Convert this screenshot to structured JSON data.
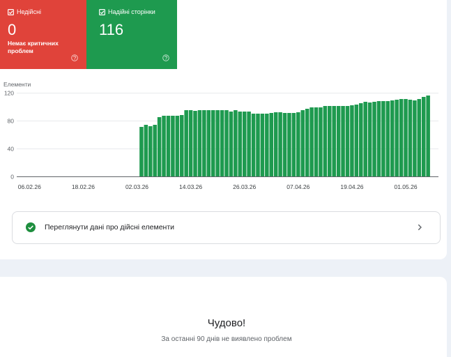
{
  "summary_cards": [
    {
      "label": "Недійсні",
      "value": "0",
      "note": "Немає критичних проблем",
      "color": "#e0433a",
      "icon": "checkbox-checked-icon",
      "help_icon": "help-circle-icon"
    },
    {
      "label": "Надійні сторінки",
      "value": "116",
      "color": "#1e9a4f",
      "icon": "checkbox-checked-icon",
      "help_icon": "help-circle-icon"
    }
  ],
  "chart_data": {
    "type": "bar",
    "title": "",
    "xlabel": "",
    "ylabel": "Елементи",
    "ylim": [
      0,
      120
    ],
    "yticks": [
      0,
      40,
      80,
      120
    ],
    "xlim": [
      "03.02.26",
      "08.05.26"
    ],
    "xticks": [
      "06.02.26",
      "18.02.26",
      "02.03.26",
      "14.03.26",
      "26.03.26",
      "07.04.26",
      "19.04.26",
      "01.05.26"
    ],
    "grid": true,
    "bar_color": "#1e9a4f",
    "x": [
      "03.03.26",
      "04.03.26",
      "05.03.26",
      "06.03.26",
      "07.03.26",
      "08.03.26",
      "09.03.26",
      "10.03.26",
      "11.03.26",
      "12.03.26",
      "13.03.26",
      "14.03.26",
      "15.03.26",
      "16.03.26",
      "17.03.26",
      "18.03.26",
      "19.03.26",
      "20.03.26",
      "21.03.26",
      "22.03.26",
      "23.03.26",
      "24.03.26",
      "25.03.26",
      "26.03.26",
      "27.03.26",
      "28.03.26",
      "29.03.26",
      "30.03.26",
      "31.03.26",
      "01.04.26",
      "02.04.26",
      "03.04.26",
      "04.04.26",
      "05.04.26",
      "06.04.26",
      "07.04.26",
      "08.04.26",
      "09.04.26",
      "10.04.26",
      "11.04.26",
      "12.04.26",
      "13.04.26",
      "14.04.26",
      "15.04.26",
      "16.04.26",
      "17.04.26",
      "18.04.26",
      "19.04.26",
      "20.04.26",
      "21.04.26",
      "22.04.26",
      "23.04.26",
      "24.04.26",
      "25.04.26",
      "26.04.26",
      "27.04.26",
      "28.04.26",
      "29.04.26",
      "30.04.26",
      "01.05.26",
      "02.05.26",
      "03.05.26",
      "04.05.26",
      "05.05.26",
      "06.05.26"
    ],
    "values": [
      71,
      74,
      72,
      74,
      85,
      87,
      87,
      87,
      87,
      88,
      95,
      95,
      94,
      95,
      95,
      95,
      95,
      95,
      95,
      95,
      93,
      95,
      93,
      93,
      93,
      90,
      90,
      90,
      90,
      91,
      92,
      92,
      91,
      91,
      91,
      92,
      95,
      97,
      99,
      99,
      99,
      101,
      101,
      101,
      101,
      101,
      101,
      102,
      103,
      105,
      107,
      106,
      107,
      108,
      108,
      108,
      109,
      110,
      111,
      111,
      110,
      109,
      111,
      114,
      116
    ]
  },
  "details_link": {
    "label": "Переглянути дані про дійсні елементи",
    "icon": "check-circle-icon",
    "chevron_icon": "chevron-right-icon",
    "icon_color": "#1e8e3e"
  },
  "status": {
    "title": "Чудово!",
    "message": "За останні 90 днів не виявлено проблем"
  }
}
